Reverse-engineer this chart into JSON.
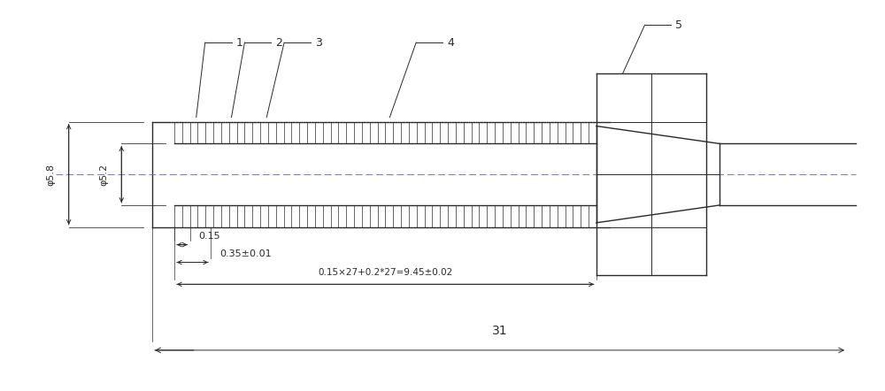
{
  "fig_width": 10.0,
  "fig_height": 4.42,
  "dpi": 100,
  "bg_color": "#ffffff",
  "line_color": "#2a2a2a",
  "dim_color": "#2a2a2a",
  "centerline_color": "#7777bb",
  "num_teeth": 27,
  "dim_52_label": "φ5.2",
  "dim_58_label": "φ5.8",
  "dim_015_label": "0.15",
  "dim_035_label": "0.35±0.01",
  "dim_formula_label": "0.15×27+0.2*27=9.45±0.02",
  "dim_31_label": "31"
}
